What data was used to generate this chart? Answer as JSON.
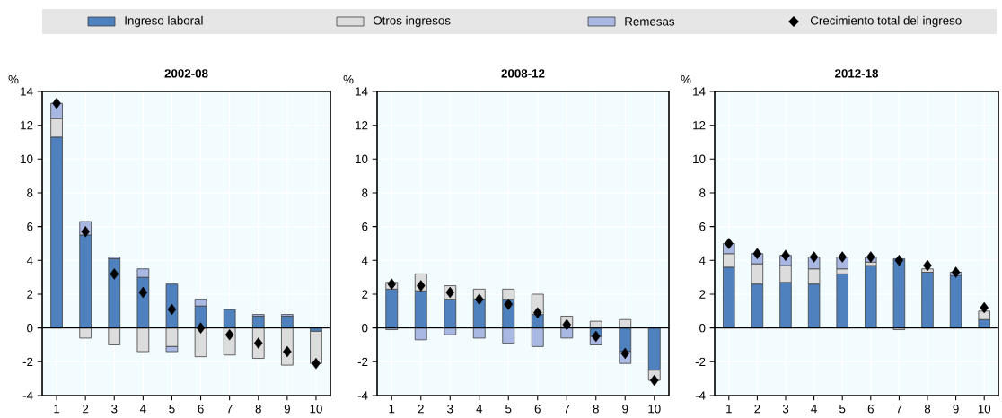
{
  "chart_data": [
    {
      "type": "bar",
      "title": "2002-08",
      "ylabel": "%",
      "stacked": true,
      "grid": true,
      "legend": "top",
      "categories": [
        "1",
        "2",
        "3",
        "4",
        "5",
        "6",
        "7",
        "8",
        "9",
        "10"
      ],
      "ylim": [
        -4,
        14
      ],
      "yticks": [
        -4,
        -2,
        0,
        2,
        4,
        6,
        8,
        10,
        12,
        14
      ],
      "series": [
        {
          "name": "Ingreso laboral",
          "color": "#4e81bd",
          "values": [
            11.3,
            5.5,
            4.1,
            3.0,
            2.6,
            1.3,
            1.1,
            0.7,
            0.7,
            -0.2
          ]
        },
        {
          "name": "Otros ingresos",
          "color": "#dcdcdc",
          "values": [
            1.1,
            -0.6,
            -1.0,
            -1.4,
            -1.1,
            -1.7,
            -1.6,
            -1.8,
            -2.2,
            -1.9
          ]
        },
        {
          "name": "Remesas",
          "color": "#a9b8e3",
          "values": [
            0.9,
            0.8,
            0.1,
            0.5,
            -0.3,
            0.4,
            null,
            0.1,
            0.1,
            null
          ]
        },
        {
          "name": "Crecimiento total del ingreso",
          "type": "scatter",
          "marker": "diamond",
          "color": "#000000",
          "values": [
            13.3,
            5.7,
            3.2,
            2.1,
            1.1,
            0.0,
            -0.4,
            -0.9,
            -1.4,
            -2.1
          ]
        }
      ]
    },
    {
      "type": "bar",
      "title": "2008-12",
      "ylabel": "%",
      "stacked": true,
      "grid": true,
      "categories": [
        "1",
        "2",
        "3",
        "4",
        "5",
        "6",
        "7",
        "8",
        "9",
        "10"
      ],
      "ylim": [
        -4,
        14
      ],
      "yticks": [
        -4,
        -2,
        0,
        2,
        4,
        6,
        8,
        10,
        12,
        14
      ],
      "series": [
        {
          "color": "#4e81bd",
          "values": [
            2.3,
            2.2,
            1.7,
            1.7,
            1.7,
            0.8,
            null,
            -0.5,
            -1.4,
            -2.5
          ]
        },
        {
          "color": "#dcdcdc",
          "values": [
            0.4,
            1.0,
            0.8,
            0.6,
            0.6,
            1.2,
            0.7,
            0.4,
            0.5,
            -0.6
          ]
        },
        {
          "color": "#a9b8e3",
          "values": [
            -0.1,
            -0.7,
            -0.4,
            -0.6,
            -0.9,
            -1.1,
            -0.6,
            -0.5,
            -0.7,
            null
          ]
        },
        {
          "type": "scatter",
          "marker": "diamond",
          "color": "#000000",
          "values": [
            2.6,
            2.5,
            2.1,
            1.7,
            1.4,
            0.9,
            0.2,
            -0.5,
            -1.5,
            -3.1
          ]
        }
      ]
    },
    {
      "type": "bar",
      "title": "2012-18",
      "ylabel": "%",
      "stacked": true,
      "grid": true,
      "categories": [
        "1",
        "2",
        "3",
        "4",
        "5",
        "6",
        "7",
        "8",
        "9",
        "10"
      ],
      "ylim": [
        -4,
        14
      ],
      "yticks": [
        -4,
        -2,
        0,
        2,
        4,
        6,
        8,
        10,
        12,
        14
      ],
      "series": [
        {
          "color": "#4e81bd",
          "values": [
            3.6,
            2.6,
            2.7,
            2.6,
            3.2,
            3.7,
            4.1,
            3.3,
            3.1,
            0.5
          ]
        },
        {
          "color": "#dcdcdc",
          "values": [
            0.8,
            1.2,
            1.0,
            0.9,
            0.3,
            0.2,
            -0.1,
            0.2,
            null,
            0.5
          ]
        },
        {
          "color": "#a9b8e3",
          "values": [
            0.6,
            0.6,
            0.6,
            0.7,
            0.7,
            0.3,
            null,
            null,
            0.2,
            null
          ]
        },
        {
          "type": "scatter",
          "marker": "diamond",
          "color": "#000000",
          "values": [
            5.0,
            4.4,
            4.3,
            4.2,
            4.2,
            4.2,
            4.0,
            3.7,
            3.3,
            1.2
          ]
        }
      ]
    }
  ]
}
